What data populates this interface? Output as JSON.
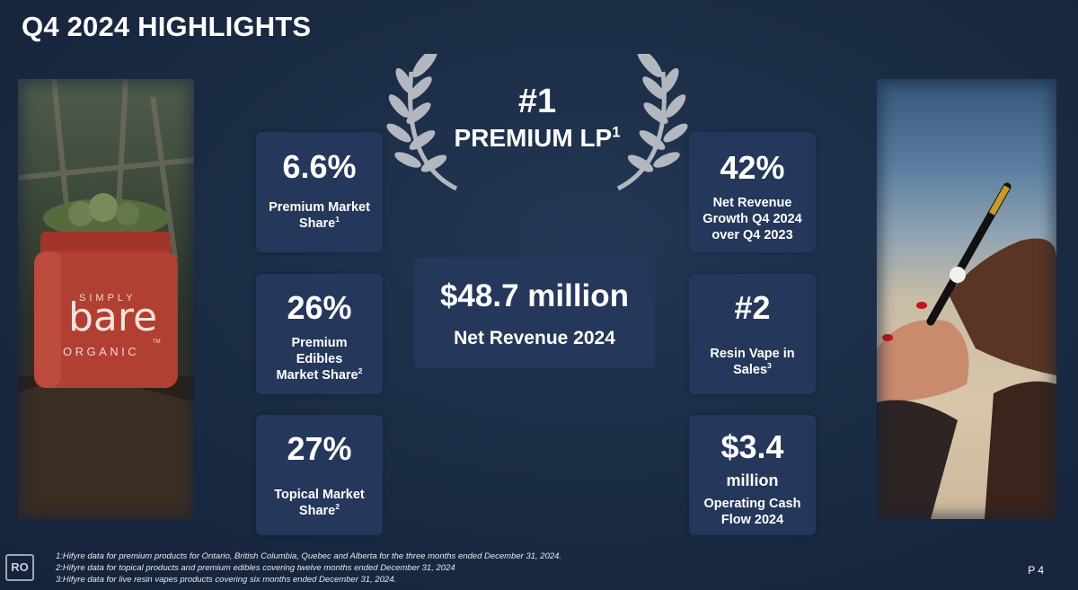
{
  "title": "Q4 2024 HIGHLIGHTS",
  "rank": {
    "number": "#1",
    "label": "PREMIUM LP",
    "note": "1"
  },
  "center": {
    "value": "$48.7 million",
    "label": "Net Revenue 2024"
  },
  "left_cards": [
    {
      "value": "6.6%",
      "line1": "Premium Market",
      "line2": "Share",
      "note": "1"
    },
    {
      "value": "26%",
      "line1": "Premium",
      "line2": "Edibles",
      "line3": "Market Share",
      "note": "2"
    },
    {
      "value": "27%",
      "line1": "Topical Market",
      "line2": "Share",
      "note": "2"
    }
  ],
  "right_cards": [
    {
      "value": "42%",
      "line1": "Net Revenue",
      "line2": "Growth Q4 2024",
      "line3": "over Q4 2023"
    },
    {
      "value": "#2",
      "line1": "Resin Vape in",
      "line2": "Sales",
      "note": "3"
    },
    {
      "value": "$3.4",
      "value2": "million",
      "line1": "Operating Cash",
      "line2": "Flow 2024"
    }
  ],
  "jar": {
    "line1": "SIMPLY",
    "line2": "bare",
    "line3": "ORGANIC",
    "tm": "TM"
  },
  "footnotes": [
    "1:Hifyre data for premium products for Ontario, British Columbia, Quebec and Alberta for the three months ended December 31, 2024.",
    "2:Hifyre data for topical products and premium edibles covering twelve months ended December 31, 2024",
    "3:Hifyre data for live resin vapes products covering six months ended December 31, 2024."
  ],
  "logo": "RO",
  "page": "P 4",
  "colors": {
    "card": "#25375a",
    "background": "#1b2c45",
    "laurel": "#b3b8c0"
  }
}
